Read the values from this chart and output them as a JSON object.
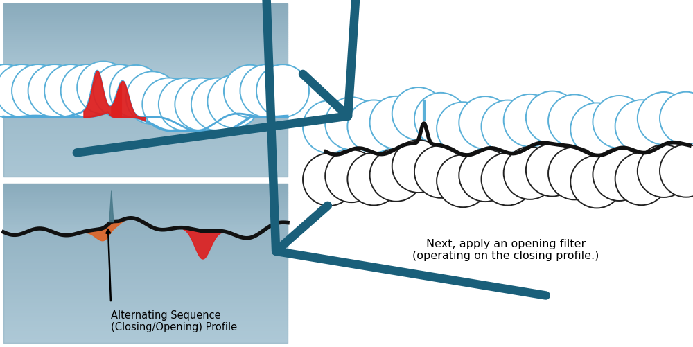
{
  "bg_color": "#ffffff",
  "arrow_color": "#1a5f7a",
  "circle_blue_edge": "#5ab0d8",
  "circle_black_edge": "#222222",
  "surface_blue": "#4fa8d8",
  "surface_black": "#111111",
  "red_color": "#dd2020",
  "orange_color": "#e06020",
  "slate_color": "#4a7a8a",
  "text_label1": "Next, apply an opening filter\n(operating on the closing profile.)",
  "text_label2": "Alternating Sequence\n(Closing/Opening) Profile",
  "grad_top_color": "#8aabbc",
  "grad_bot_color": "#daeef8"
}
